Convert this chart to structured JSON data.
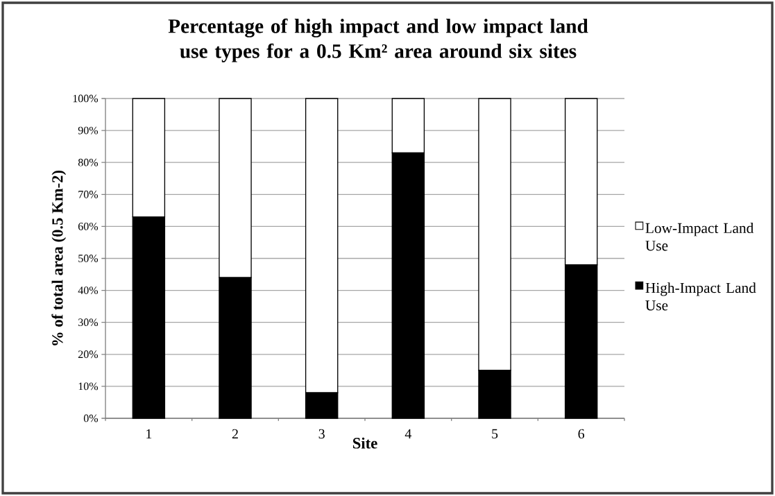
{
  "chart_data": {
    "type": "bar",
    "stacked": true,
    "title": "Percentage of high impact and low impact land use types for a 0.5 Km² area around six sites",
    "xlabel": "Site",
    "ylabel": "% of total area (0.5 Km-2)",
    "categories": [
      "1",
      "2",
      "3",
      "4",
      "5",
      "6"
    ],
    "series": [
      {
        "name": "High-Impact Land Use",
        "color": "#000000",
        "values": [
          63,
          44,
          8,
          83,
          15,
          48
        ]
      },
      {
        "name": "Low-Impact Land Use",
        "color": "#ffffff",
        "values": [
          37,
          56,
          92,
          17,
          85,
          52
        ]
      }
    ],
    "ylim": [
      0,
      100
    ],
    "yticks": [
      {
        "value": 0,
        "label": "0%"
      },
      {
        "value": 10,
        "label": "10%"
      },
      {
        "value": 20,
        "label": "20%"
      },
      {
        "value": 30,
        "label": "30%"
      },
      {
        "value": 40,
        "label": "40%"
      },
      {
        "value": 50,
        "label": "50%"
      },
      {
        "value": 60,
        "label": "60%"
      },
      {
        "value": 70,
        "label": "70%"
      },
      {
        "value": 80,
        "label": "80%"
      },
      {
        "value": 90,
        "label": "90%"
      },
      {
        "value": 100,
        "label": "100%"
      }
    ],
    "grid": "y",
    "legend": "right"
  }
}
